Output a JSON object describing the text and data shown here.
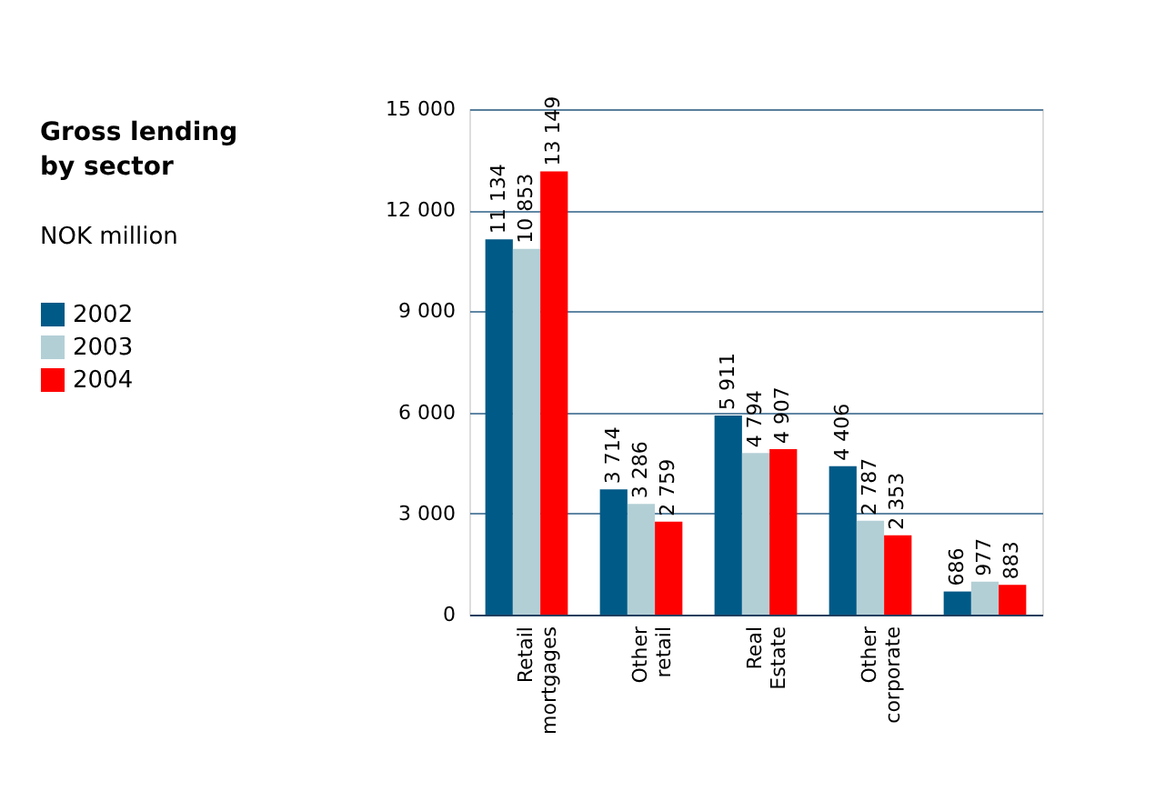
{
  "chart_data": {
    "type": "bar",
    "title": "Gross lending\nby sector",
    "subtitle": "NOK million",
    "categories": [
      "Retail\nmortgages",
      "Other\nretail",
      "Real\nEstate",
      "Other\ncorporate",
      null
    ],
    "series": [
      {
        "name": "2002",
        "color": "#005a87",
        "values": [
          11134,
          3714,
          5911,
          4406,
          686
        ],
        "value_labels": [
          "11 134",
          "3 714",
          "5 911",
          "4 406",
          "686"
        ]
      },
      {
        "name": "2003",
        "color": "#b3cfd6",
        "values": [
          10853,
          3286,
          4794,
          2787,
          977
        ],
        "value_labels": [
          "10 853",
          "3 286",
          "4 794",
          "2 787",
          "977"
        ]
      },
      {
        "name": "2004",
        "color": "#ff0000",
        "values": [
          13149,
          2759,
          4907,
          2353,
          883
        ],
        "value_labels": [
          "13 149",
          "2 759",
          "4 907",
          "2 353",
          "883"
        ]
      }
    ],
    "ylim": [
      0,
      15000
    ],
    "yticks": [
      {
        "value": 0,
        "label": "0"
      },
      {
        "value": 3000,
        "label": "3 000"
      },
      {
        "value": 6000,
        "label": "6 000"
      },
      {
        "value": 9000,
        "label": "9 000"
      },
      {
        "value": 12000,
        "label": "12 000"
      },
      {
        "value": 15000,
        "label": "15 000"
      }
    ],
    "grid": "y",
    "legend": "left"
  }
}
